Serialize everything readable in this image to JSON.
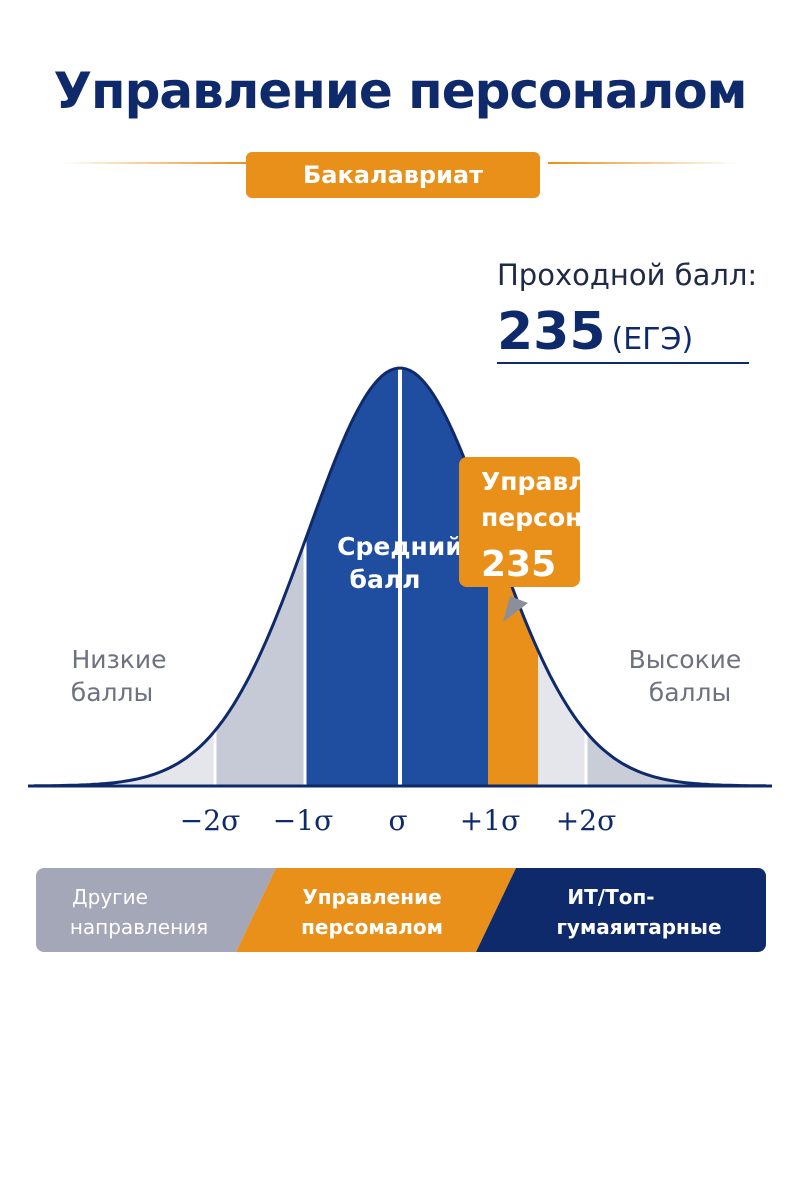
{
  "header": {
    "title": "Управление персоналом",
    "badge": "Бакалавриат"
  },
  "passing_score": {
    "label": "Проходной балл:",
    "value": "235",
    "unit": "(ЕГЭ)"
  },
  "distribution": {
    "center_label_line1": "Средний",
    "center_label_line2": "балл",
    "low_label_line1": "Низкие",
    "low_label_line2": "баллы",
    "high_label_line1": "Высокие",
    "high_label_line2": "баллы",
    "callout_line1": "Управление",
    "callout_line2": "персоналом",
    "callout_value": "235",
    "axis_ticks": [
      "−2σ",
      "−1σ",
      "σ",
      "+1σ",
      "+2σ"
    ]
  },
  "segments": [
    {
      "line1": "Другие",
      "line2": "направления",
      "color": "#a3a7b8",
      "text_color": "#ffffff"
    },
    {
      "line1": "Управление",
      "line2": "персомалом",
      "color": "#e8901a",
      "text_color": "#ffffff"
    },
    {
      "line1": "ИТ/Топ-",
      "line2": "гумаяитарные",
      "color": "#0f2a6b",
      "text_color": "#ffffff"
    }
  ],
  "colors": {
    "navy": "#0f2a6b",
    "blue": "#1f4ea0",
    "orange": "#e8901a",
    "gray_light": "#c6cad6",
    "gray_lighter": "#e4e6ec"
  }
}
